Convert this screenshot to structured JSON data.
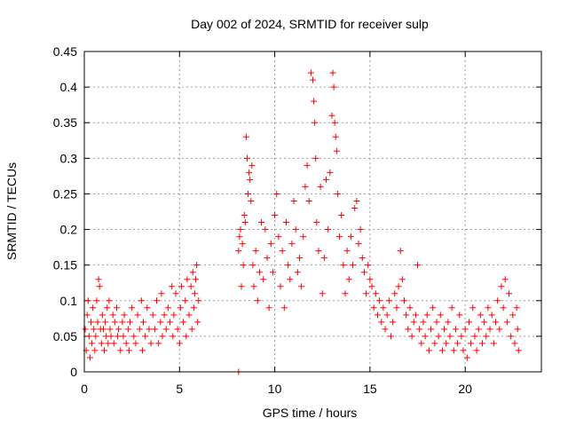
{
  "chart_data": {
    "type": "scatter",
    "title": "Day 002 of 2024, SRMTID for receiver sulp",
    "xlabel": "GPS time / hours",
    "ylabel": "SRMTID / TECUs",
    "xlim": [
      0,
      24
    ],
    "ylim": [
      0,
      0.45
    ],
    "xticks": [
      0,
      5,
      10,
      15,
      20
    ],
    "yticks": [
      0,
      0.05,
      0.1,
      0.15,
      0.2,
      0.25,
      0.3,
      0.35,
      0.4,
      0.45
    ],
    "xtick_labels": [
      "0",
      "5",
      "10",
      "15",
      "20"
    ],
    "ytick_labels": [
      "0",
      "0.05",
      "0.1",
      "0.15",
      "0.2",
      "0.25",
      "0.3",
      "0.35",
      "0.4",
      "0.45"
    ],
    "grid": true,
    "marker": "+",
    "color": "#ff0000",
    "series": [
      {
        "name": "SRMTID",
        "points": [
          [
            0.05,
            0.06
          ],
          [
            0.1,
            0.03
          ],
          [
            0.15,
            0.08
          ],
          [
            0.2,
            0.1
          ],
          [
            0.25,
            0.05
          ],
          [
            0.3,
            0.02
          ],
          [
            0.35,
            0.07
          ],
          [
            0.4,
            0.04
          ],
          [
            0.45,
            0.09
          ],
          [
            0.5,
            0.06
          ],
          [
            0.55,
            0.03
          ],
          [
            0.6,
            0.05
          ],
          [
            0.65,
            0.1
          ],
          [
            0.7,
            0.07
          ],
          [
            0.75,
            0.13
          ],
          [
            0.8,
            0.12
          ],
          [
            0.85,
            0.06
          ],
          [
            0.9,
            0.04
          ],
          [
            0.95,
            0.08
          ],
          [
            1.0,
            0.06
          ],
          [
            1.05,
            0.03
          ],
          [
            1.1,
            0.07
          ],
          [
            1.15,
            0.05
          ],
          [
            1.2,
            0.09
          ],
          [
            1.25,
            0.04
          ],
          [
            1.3,
            0.1
          ],
          [
            1.35,
            0.06
          ],
          [
            1.4,
            0.05
          ],
          [
            1.5,
            0.08
          ],
          [
            1.55,
            0.04
          ],
          [
            1.6,
            0.07
          ],
          [
            1.7,
            0.09
          ],
          [
            1.75,
            0.05
          ],
          [
            1.8,
            0.06
          ],
          [
            1.9,
            0.03
          ],
          [
            2.0,
            0.07
          ],
          [
            2.05,
            0.05
          ],
          [
            2.1,
            0.08
          ],
          [
            2.2,
            0.04
          ],
          [
            2.3,
            0.06
          ],
          [
            2.35,
            0.03
          ],
          [
            2.4,
            0.07
          ],
          [
            2.5,
            0.09
          ],
          [
            2.6,
            0.05
          ],
          [
            2.7,
            0.04
          ],
          [
            2.8,
            0.08
          ],
          [
            2.9,
            0.06
          ],
          [
            3.0,
            0.1
          ],
          [
            3.05,
            0.03
          ],
          [
            3.1,
            0.07
          ],
          [
            3.2,
            0.05
          ],
          [
            3.3,
            0.09
          ],
          [
            3.4,
            0.06
          ],
          [
            3.5,
            0.04
          ],
          [
            3.6,
            0.08
          ],
          [
            3.7,
            0.06
          ],
          [
            3.8,
            0.1
          ],
          [
            3.9,
            0.04
          ],
          [
            4.0,
            0.07
          ],
          [
            4.05,
            0.11
          ],
          [
            4.1,
            0.05
          ],
          [
            4.2,
            0.08
          ],
          [
            4.3,
            0.06
          ],
          [
            4.4,
            0.09
          ],
          [
            4.5,
            0.07
          ],
          [
            4.6,
            0.12
          ],
          [
            4.65,
            0.05
          ],
          [
            4.7,
            0.08
          ],
          [
            4.8,
            0.11
          ],
          [
            4.9,
            0.06
          ],
          [
            5.0,
            0.04
          ],
          [
            5.05,
            0.09
          ],
          [
            5.1,
            0.12
          ],
          [
            5.2,
            0.07
          ],
          [
            5.3,
            0.1
          ],
          [
            5.35,
            0.05
          ],
          [
            5.4,
            0.13
          ],
          [
            5.5,
            0.08
          ],
          [
            5.6,
            0.12
          ],
          [
            5.65,
            0.06
          ],
          [
            5.7,
            0.14
          ],
          [
            5.75,
            0.09
          ],
          [
            5.8,
            0.11
          ],
          [
            5.85,
            0.13
          ],
          [
            5.9,
            0.15
          ],
          [
            5.95,
            0.07
          ],
          [
            6.0,
            0.1
          ],
          [
            8.1,
            0.0
          ],
          [
            8.1,
            0.17
          ],
          [
            8.15,
            0.19
          ],
          [
            8.2,
            0.2
          ],
          [
            8.25,
            0.12
          ],
          [
            8.3,
            0.18
          ],
          [
            8.35,
            0.15
          ],
          [
            8.4,
            0.22
          ],
          [
            8.45,
            0.21
          ],
          [
            8.5,
            0.33
          ],
          [
            8.55,
            0.3
          ],
          [
            8.6,
            0.25
          ],
          [
            8.65,
            0.28
          ],
          [
            8.7,
            0.27
          ],
          [
            8.75,
            0.24
          ],
          [
            8.8,
            0.29
          ],
          [
            8.85,
            0.15
          ],
          [
            8.9,
            0.12
          ],
          [
            9.0,
            0.17
          ],
          [
            9.1,
            0.1
          ],
          [
            9.2,
            0.14
          ],
          [
            9.3,
            0.21
          ],
          [
            9.4,
            0.13
          ],
          [
            9.5,
            0.2
          ],
          [
            9.6,
            0.16
          ],
          [
            9.7,
            0.09
          ],
          [
            9.8,
            0.18
          ],
          [
            9.9,
            0.14
          ],
          [
            10.0,
            0.22
          ],
          [
            10.1,
            0.25
          ],
          [
            10.2,
            0.19
          ],
          [
            10.3,
            0.12
          ],
          [
            10.4,
            0.17
          ],
          [
            10.5,
            0.09
          ],
          [
            10.6,
            0.21
          ],
          [
            10.7,
            0.15
          ],
          [
            10.8,
            0.13
          ],
          [
            10.9,
            0.18
          ],
          [
            11.0,
            0.24
          ],
          [
            11.1,
            0.2
          ],
          [
            11.2,
            0.14
          ],
          [
            11.3,
            0.16
          ],
          [
            11.4,
            0.12
          ],
          [
            11.5,
            0.19
          ],
          [
            11.6,
            0.26
          ],
          [
            11.7,
            0.29
          ],
          [
            11.8,
            0.24
          ],
          [
            11.9,
            0.42
          ],
          [
            12.0,
            0.41
          ],
          [
            12.05,
            0.38
          ],
          [
            12.1,
            0.35
          ],
          [
            12.15,
            0.3
          ],
          [
            12.2,
            0.21
          ],
          [
            12.3,
            0.17
          ],
          [
            12.4,
            0.26
          ],
          [
            12.5,
            0.11
          ],
          [
            12.6,
            0.16
          ],
          [
            12.7,
            0.27
          ],
          [
            12.8,
            0.2
          ],
          [
            12.9,
            0.28
          ],
          [
            13.0,
            0.36
          ],
          [
            13.05,
            0.42
          ],
          [
            13.1,
            0.4
          ],
          [
            13.15,
            0.35
          ],
          [
            13.2,
            0.33
          ],
          [
            13.25,
            0.31
          ],
          [
            13.3,
            0.25
          ],
          [
            13.4,
            0.19
          ],
          [
            13.5,
            0.22
          ],
          [
            13.6,
            0.15
          ],
          [
            13.7,
            0.11
          ],
          [
            13.8,
            0.17
          ],
          [
            13.9,
            0.13
          ],
          [
            14.0,
            0.19
          ],
          [
            14.1,
            0.15
          ],
          [
            14.2,
            0.23
          ],
          [
            14.3,
            0.24
          ],
          [
            14.4,
            0.18
          ],
          [
            14.5,
            0.2
          ],
          [
            14.6,
            0.16
          ],
          [
            14.7,
            0.14
          ],
          [
            14.8,
            0.11
          ],
          [
            14.9,
            0.15
          ],
          [
            15.0,
            0.13
          ],
          [
            15.1,
            0.12
          ],
          [
            15.2,
            0.09
          ],
          [
            15.3,
            0.11
          ],
          [
            15.4,
            0.08
          ],
          [
            15.5,
            0.1
          ],
          [
            15.6,
            0.07
          ],
          [
            15.7,
            0.09
          ],
          [
            15.8,
            0.06
          ],
          [
            15.9,
            0.08
          ],
          [
            16.0,
            0.1
          ],
          [
            16.1,
            0.05
          ],
          [
            16.2,
            0.07
          ],
          [
            16.3,
            0.11
          ],
          [
            16.4,
            0.09
          ],
          [
            16.5,
            0.12
          ],
          [
            16.6,
            0.17
          ],
          [
            16.7,
            0.13
          ],
          [
            16.8,
            0.1
          ],
          [
            16.9,
            0.08
          ],
          [
            17.0,
            0.06
          ],
          [
            17.1,
            0.09
          ],
          [
            17.2,
            0.05
          ],
          [
            17.3,
            0.07
          ],
          [
            17.4,
            0.08
          ],
          [
            17.5,
            0.15
          ],
          [
            17.6,
            0.06
          ],
          [
            17.7,
            0.04
          ],
          [
            17.8,
            0.07
          ],
          [
            17.9,
            0.05
          ],
          [
            18.0,
            0.08
          ],
          [
            18.1,
            0.03
          ],
          [
            18.2,
            0.06
          ],
          [
            18.3,
            0.09
          ],
          [
            18.4,
            0.04
          ],
          [
            18.5,
            0.07
          ],
          [
            18.6,
            0.05
          ],
          [
            18.7,
            0.08
          ],
          [
            18.8,
            0.03
          ],
          [
            18.9,
            0.06
          ],
          [
            19.0,
            0.04
          ],
          [
            19.1,
            0.07
          ],
          [
            19.2,
            0.05
          ],
          [
            19.3,
            0.09
          ],
          [
            19.4,
            0.03
          ],
          [
            19.5,
            0.06
          ],
          [
            19.6,
            0.04
          ],
          [
            19.7,
            0.08
          ],
          [
            19.8,
            0.05
          ],
          [
            19.9,
            0.03
          ],
          [
            20.0,
            0.06
          ],
          [
            20.1,
            0.02
          ],
          [
            20.2,
            0.07
          ],
          [
            20.3,
            0.04
          ],
          [
            20.4,
            0.09
          ],
          [
            20.5,
            0.05
          ],
          [
            20.6,
            0.03
          ],
          [
            20.7,
            0.06
          ],
          [
            20.8,
            0.08
          ],
          [
            20.9,
            0.04
          ],
          [
            21.0,
            0.07
          ],
          [
            21.1,
            0.05
          ],
          [
            21.2,
            0.09
          ],
          [
            21.3,
            0.06
          ],
          [
            21.4,
            0.08
          ],
          [
            21.5,
            0.04
          ],
          [
            21.6,
            0.07
          ],
          [
            21.7,
            0.1
          ],
          [
            21.8,
            0.06
          ],
          [
            21.9,
            0.12
          ],
          [
            22.0,
            0.09
          ],
          [
            22.1,
            0.13
          ],
          [
            22.2,
            0.07
          ],
          [
            22.3,
            0.11
          ],
          [
            22.4,
            0.05
          ],
          [
            22.5,
            0.08
          ],
          [
            22.6,
            0.04
          ],
          [
            22.7,
            0.09
          ],
          [
            22.75,
            0.06
          ],
          [
            22.8,
            0.03
          ]
        ]
      }
    ]
  }
}
